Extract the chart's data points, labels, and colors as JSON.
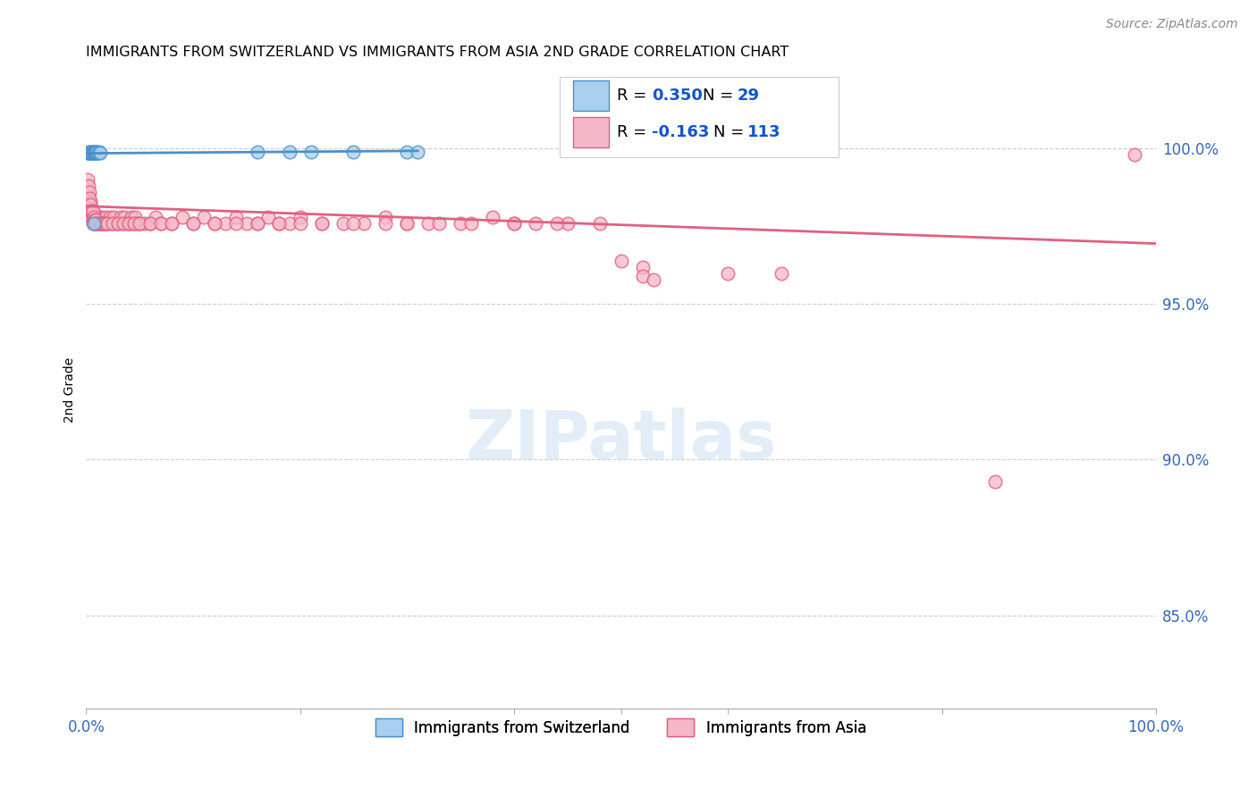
{
  "title": "IMMIGRANTS FROM SWITZERLAND VS IMMIGRANTS FROM ASIA 2ND GRADE CORRELATION CHART",
  "source": "Source: ZipAtlas.com",
  "ylabel": "2nd Grade",
  "y_tick_labels": [
    "100.0%",
    "95.0%",
    "90.0%",
    "85.0%"
  ],
  "y_tick_values": [
    1.0,
    0.95,
    0.9,
    0.85
  ],
  "x_range": [
    0.0,
    1.0
  ],
  "y_range": [
    0.82,
    1.025
  ],
  "color_swiss": "#A8D0EE",
  "color_swiss_line": "#4A90C8",
  "color_asia": "#F5B8C8",
  "color_asia_line": "#E06080",
  "background_color": "#FFFFFF",
  "watermark": "ZIPatlas",
  "swiss_x": [
    0.001,
    0.002,
    0.003,
    0.003,
    0.004,
    0.004,
    0.005,
    0.005,
    0.005,
    0.006,
    0.006,
    0.007,
    0.007,
    0.008,
    0.008,
    0.009,
    0.009,
    0.01,
    0.01,
    0.011,
    0.012,
    0.013,
    0.007,
    0.16,
    0.19,
    0.21,
    0.25,
    0.3,
    0.31
  ],
  "swiss_y": [
    0.9988,
    0.9988,
    0.9988,
    0.999,
    0.9988,
    0.999,
    0.9988,
    0.999,
    0.9988,
    0.999,
    0.9988,
    0.9988,
    0.999,
    0.9988,
    0.999,
    0.9988,
    0.999,
    0.9988,
    0.999,
    0.9988,
    0.999,
    0.9988,
    0.976,
    0.999,
    0.999,
    0.999,
    0.999,
    0.999,
    0.999
  ],
  "asia_x": [
    0.001,
    0.002,
    0.002,
    0.003,
    0.003,
    0.004,
    0.004,
    0.005,
    0.005,
    0.006,
    0.006,
    0.006,
    0.007,
    0.008,
    0.009,
    0.01,
    0.011,
    0.012,
    0.013,
    0.014,
    0.015,
    0.016,
    0.017,
    0.018,
    0.019,
    0.02,
    0.022,
    0.024,
    0.026,
    0.028,
    0.03,
    0.032,
    0.034,
    0.036,
    0.038,
    0.04,
    0.042,
    0.044,
    0.046,
    0.048,
    0.05,
    0.055,
    0.06,
    0.065,
    0.07,
    0.08,
    0.09,
    0.1,
    0.11,
    0.12,
    0.13,
    0.14,
    0.15,
    0.16,
    0.17,
    0.18,
    0.19,
    0.2,
    0.22,
    0.24,
    0.26,
    0.28,
    0.3,
    0.32,
    0.35,
    0.38,
    0.4,
    0.42,
    0.45,
    0.5,
    0.52,
    0.52,
    0.53,
    0.6,
    0.65,
    0.85,
    0.98,
    0.003,
    0.004,
    0.005,
    0.006,
    0.007,
    0.008,
    0.009,
    0.01,
    0.012,
    0.014,
    0.016,
    0.018,
    0.02,
    0.025,
    0.03,
    0.035,
    0.04,
    0.045,
    0.05,
    0.06,
    0.07,
    0.08,
    0.1,
    0.12,
    0.14,
    0.16,
    0.18,
    0.2,
    0.22,
    0.25,
    0.28,
    0.3,
    0.33,
    0.36,
    0.4,
    0.44,
    0.48
  ],
  "asia_y": [
    0.99,
    0.985,
    0.988,
    0.982,
    0.986,
    0.98,
    0.983,
    0.978,
    0.981,
    0.978,
    0.98,
    0.976,
    0.978,
    0.976,
    0.978,
    0.976,
    0.976,
    0.978,
    0.976,
    0.976,
    0.978,
    0.976,
    0.976,
    0.978,
    0.976,
    0.976,
    0.978,
    0.976,
    0.978,
    0.976,
    0.976,
    0.978,
    0.976,
    0.978,
    0.976,
    0.976,
    0.978,
    0.976,
    0.978,
    0.976,
    0.976,
    0.976,
    0.976,
    0.978,
    0.976,
    0.976,
    0.978,
    0.976,
    0.978,
    0.976,
    0.976,
    0.978,
    0.976,
    0.976,
    0.978,
    0.976,
    0.976,
    0.978,
    0.976,
    0.976,
    0.976,
    0.978,
    0.976,
    0.976,
    0.976,
    0.978,
    0.976,
    0.976,
    0.976,
    0.964,
    0.962,
    0.959,
    0.958,
    0.96,
    0.96,
    0.893,
    0.998,
    0.984,
    0.982,
    0.98,
    0.98,
    0.978,
    0.977,
    0.977,
    0.976,
    0.976,
    0.976,
    0.976,
    0.976,
    0.976,
    0.976,
    0.976,
    0.976,
    0.976,
    0.976,
    0.976,
    0.976,
    0.976,
    0.976,
    0.976,
    0.976,
    0.976,
    0.976,
    0.976,
    0.976,
    0.976,
    0.976,
    0.976,
    0.976,
    0.976,
    0.976,
    0.976,
    0.976,
    0.976
  ]
}
